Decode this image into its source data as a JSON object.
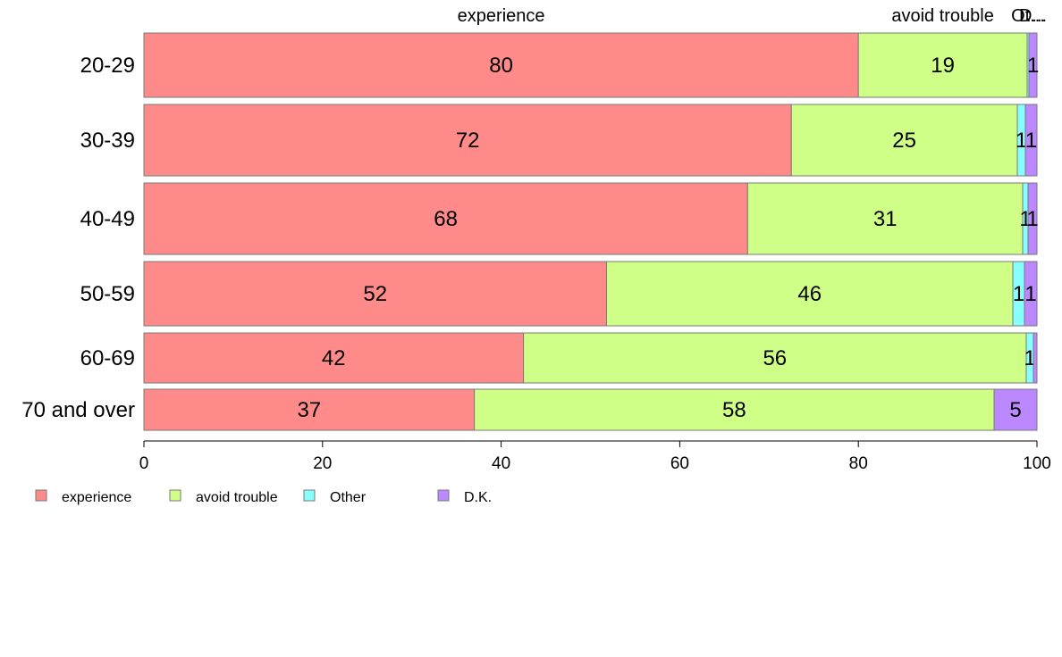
{
  "chart_data": {
    "type": "bar",
    "orientation": "horizontal",
    "stacked": true,
    "categories": [
      "20-29",
      "30-39",
      "40-49",
      "50-59",
      "60-69",
      "70 and over"
    ],
    "series": [
      {
        "name": "experience",
        "color": "#ff8a8a",
        "values": [
          80,
          72.5,
          67.6,
          51.8,
          42.5,
          37
        ]
      },
      {
        "name": "avoid trouble",
        "color": "#d0ff88",
        "values": [
          18.9,
          25.3,
          30.8,
          45.5,
          56.3,
          58.2
        ]
      },
      {
        "name": "Other",
        "color": "#88ffff",
        "values": [
          0.2,
          0.9,
          0.6,
          1.3,
          0.8,
          0
        ]
      },
      {
        "name": "D.K.",
        "color": "#bb88ff",
        "values": [
          0.9,
          1.3,
          1.0,
          1.4,
          0.4,
          4.8
        ]
      }
    ],
    "value_labels": [
      [
        "80",
        "19",
        "",
        "1"
      ],
      [
        "72",
        "25",
        "1",
        "1"
      ],
      [
        "68",
        "31",
        "1",
        "1"
      ],
      [
        "52",
        "46",
        "1",
        "1"
      ],
      [
        "42",
        "56",
        "1",
        ""
      ],
      [
        "37",
        "58",
        "",
        "5"
      ]
    ],
    "top_labels": [
      "experience",
      "avoid trouble",
      "Ot...",
      "D..."
    ],
    "xlim": [
      0,
      100
    ],
    "xticks": [
      "0",
      "20",
      "40",
      "60",
      "80",
      "100"
    ],
    "legend": {
      "position": "bottom-left",
      "entries": [
        "experience",
        "avoid trouble",
        "Other",
        "D.K."
      ]
    },
    "grid": false
  }
}
